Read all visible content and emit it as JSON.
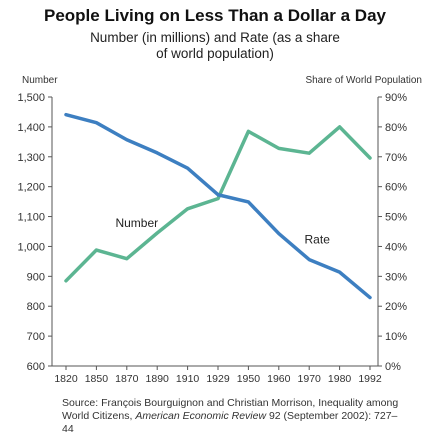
{
  "title": "People Living on Less Than a Dollar a Day",
  "subtitle_line1": "Number (in millions) and Rate (as a share",
  "subtitle_line2": "of world population)",
  "ylabel": "Number",
  "y2label": "Share of World Population",
  "source": {
    "prefix": "Source: François Bourguignon and Christian Morrison, Inequality among World Citizens, ",
    "journal": "American Economic Review",
    "suffix": " 92 (September 2002): 727–44"
  },
  "colors": {
    "number_line": "#3d7fc1",
    "rate_line": "#5cb592",
    "axis": "#555555"
  },
  "chart_data": {
    "type": "line",
    "categories": [
      "1820",
      "1850",
      "1870",
      "1890",
      "1910",
      "1929",
      "1950",
      "1960",
      "1970",
      "1980",
      "1992"
    ],
    "ylim": [
      600,
      1500
    ],
    "y2lim": [
      0,
      90
    ],
    "yticks": [
      "600",
      "700",
      "800",
      "900",
      "1,000",
      "1,100",
      "1,200",
      "1,300",
      "1,400",
      "1,500"
    ],
    "y2ticks": [
      "0%",
      "10%",
      "20%",
      "30%",
      "40%",
      "50%",
      "60%",
      "70%",
      "80%",
      "90%"
    ],
    "grid": false,
    "series": [
      {
        "name": "Number",
        "axis": "left",
        "values": [
          1441,
          1414,
          1357,
          1313,
          1262,
          1173,
          1149,
          1043,
          956,
          914,
          829
        ]
      },
      {
        "name": "Rate",
        "axis": "right",
        "values": [
          28.5,
          38.8,
          35.9,
          44.5,
          52.6,
          56.0,
          78.5,
          72.8,
          71.2,
          80.0,
          69.6
        ]
      }
    ]
  }
}
